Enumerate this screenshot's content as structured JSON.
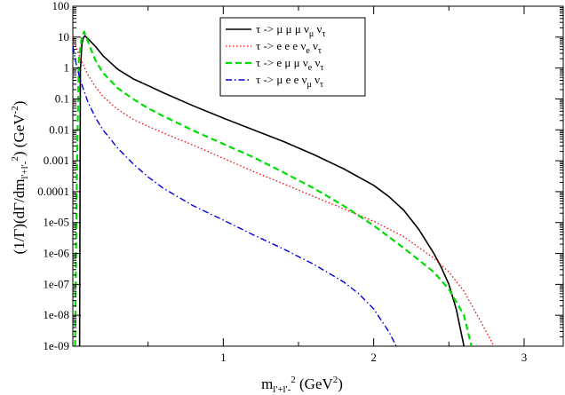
{
  "chart_data": {
    "type": "line",
    "title": "",
    "xlabel": "m_{l'+l'-}^2 (GeV^2)",
    "ylabel": "(1/Γ)(dΓ/dm_{l'+l'-}^2) (GeV^-2)",
    "xlim": [
      0,
      3.26
    ],
    "ylim": [
      1e-09,
      100
    ],
    "yscale": "log",
    "x_ticks": [
      1,
      2,
      3
    ],
    "x_tick_labels": [
      "1",
      "2",
      "3"
    ],
    "y_ticks": [
      1e-09,
      1e-08,
      1e-07,
      1e-06,
      1e-05,
      0.0001,
      0.001,
      0.01,
      0.1,
      1,
      10,
      100
    ],
    "y_tick_labels": [
      "1e-09",
      "1e-08",
      "1e-07",
      "1e-06",
      "1e-05",
      "0.0001",
      "0.001",
      "0.01",
      "0.1",
      "1",
      "10",
      "100"
    ],
    "grid": false,
    "legend_position": "top-center",
    "series": [
      {
        "name": "τ -> μ μ μ ν_μ ν_τ",
        "color": "#000000",
        "dash": "solid",
        "points": [
          [
            0.045,
            1e-09
          ],
          [
            0.05,
            0.8
          ],
          [
            0.06,
            6
          ],
          [
            0.07,
            9.5
          ],
          [
            0.08,
            11
          ],
          [
            0.1,
            9
          ],
          [
            0.15,
            5
          ],
          [
            0.2,
            2.5
          ],
          [
            0.3,
            0.9
          ],
          [
            0.4,
            0.45
          ],
          [
            0.5,
            0.27
          ],
          [
            0.6,
            0.16
          ],
          [
            0.8,
            0.06
          ],
          [
            1.0,
            0.024
          ],
          [
            1.2,
            0.01
          ],
          [
            1.4,
            0.0042
          ],
          [
            1.6,
            0.0016
          ],
          [
            1.8,
            0.00055
          ],
          [
            2.0,
            0.00016
          ],
          [
            2.1,
            7e-05
          ],
          [
            2.2,
            2.5e-05
          ],
          [
            2.3,
            6e-06
          ],
          [
            2.4,
            1e-06
          ],
          [
            2.45,
            3.5e-07
          ],
          [
            2.5,
            1e-07
          ],
          [
            2.55,
            1.5e-08
          ],
          [
            2.6,
            1e-09
          ]
        ]
      },
      {
        "name": "τ -> e e e ν_e ν_τ",
        "color": "#ff0000",
        "dash": "dotted",
        "points": [
          [
            0.0,
            12
          ],
          [
            0.02,
            5
          ],
          [
            0.05,
            2
          ],
          [
            0.1,
            0.6
          ],
          [
            0.15,
            0.25
          ],
          [
            0.2,
            0.12
          ],
          [
            0.3,
            0.045
          ],
          [
            0.4,
            0.022
          ],
          [
            0.5,
            0.013
          ],
          [
            0.6,
            0.008
          ],
          [
            0.7,
            0.005
          ],
          [
            0.8,
            0.0032
          ],
          [
            1.0,
            0.0012
          ],
          [
            1.2,
            0.00045
          ],
          [
            1.4,
            0.00018
          ],
          [
            1.6,
            7e-05
          ],
          [
            1.8,
            2.8e-05
          ],
          [
            2.0,
            1.1e-05
          ],
          [
            2.2,
            3.5e-06
          ],
          [
            2.4,
            7e-07
          ],
          [
            2.5,
            2.5e-07
          ],
          [
            2.6,
            6e-08
          ],
          [
            2.7,
            8e-09
          ],
          [
            2.8,
            1e-09
          ]
        ]
      },
      {
        "name": "τ -> e μ μ ν_e ν_τ",
        "color": "#00dd00",
        "dash": "dashed",
        "points": [
          [
            0.015,
            1e-09
          ],
          [
            0.025,
            0.0001
          ],
          [
            0.04,
            2
          ],
          [
            0.06,
            10
          ],
          [
            0.075,
            15
          ],
          [
            0.09,
            10
          ],
          [
            0.12,
            4
          ],
          [
            0.15,
            1.8
          ],
          [
            0.2,
            0.7
          ],
          [
            0.3,
            0.22
          ],
          [
            0.4,
            0.1
          ],
          [
            0.5,
            0.05
          ],
          [
            0.6,
            0.028
          ],
          [
            0.8,
            0.0095
          ],
          [
            1.0,
            0.0035
          ],
          [
            1.2,
            0.0013
          ],
          [
            1.4,
            0.00042
          ],
          [
            1.6,
            0.00013
          ],
          [
            1.8,
            3.5e-05
          ],
          [
            2.0,
            8e-06
          ],
          [
            2.2,
            1.5e-06
          ],
          [
            2.4,
            2.5e-07
          ],
          [
            2.5,
            7e-08
          ],
          [
            2.6,
            1e-08
          ],
          [
            2.65,
            1e-09
          ]
        ]
      },
      {
        "name": "τ -> μ e e ν_μ ν_τ",
        "color": "#0000dd",
        "dash": "dashdot",
        "points": [
          [
            0.0,
            5
          ],
          [
            0.02,
            1.5
          ],
          [
            0.05,
            0.4
          ],
          [
            0.1,
            0.08
          ],
          [
            0.15,
            0.025
          ],
          [
            0.2,
            0.01
          ],
          [
            0.3,
            0.0025
          ],
          [
            0.4,
            0.0008
          ],
          [
            0.5,
            0.0003
          ],
          [
            0.6,
            0.00013
          ],
          [
            0.8,
            3.5e-05
          ],
          [
            1.0,
            1.2e-05
          ],
          [
            1.2,
            4e-06
          ],
          [
            1.4,
            1.4e-06
          ],
          [
            1.6,
            4.5e-07
          ],
          [
            1.8,
            1.2e-07
          ],
          [
            1.9,
            5e-08
          ],
          [
            2.0,
            1.6e-08
          ],
          [
            2.1,
            3e-09
          ],
          [
            2.15,
            1e-09
          ]
        ]
      }
    ]
  }
}
